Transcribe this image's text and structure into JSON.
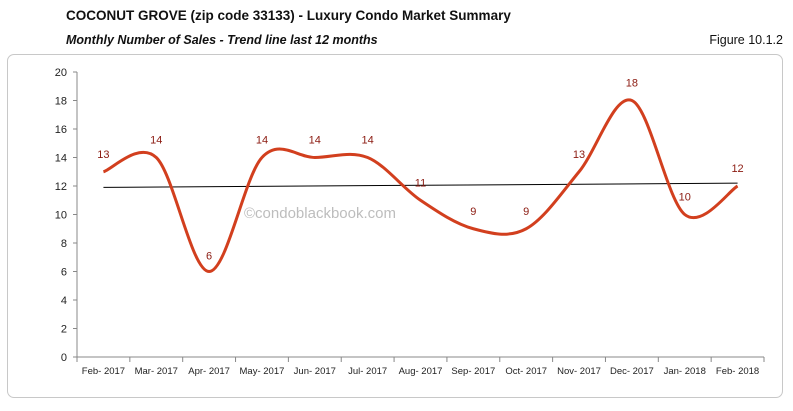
{
  "header": {
    "title": "COCONUT GROVE (zip code 33133) - Luxury Condo Market Summary",
    "subtitle": "Monthly Number of Sales - Trend line last 12 months",
    "figure_label": "Figure 10.1.2"
  },
  "watermark": "©condoblackbook.com",
  "colors": {
    "series": "#d23f1e",
    "trend": "#000000",
    "label": "#8b1a10"
  },
  "chart_data": {
    "type": "line",
    "smooth": true,
    "categories": [
      "Feb- 2017",
      "Mar- 2017",
      "Apr- 2017",
      "May- 2017",
      "Jun- 2017",
      "Jul- 2017",
      "Aug- 2017",
      "Sep- 2017",
      "Oct- 2017",
      "Nov- 2017",
      "Dec- 2017",
      "Jan- 2018",
      "Feb- 2018"
    ],
    "series": [
      {
        "values": [
          13,
          14,
          6,
          14,
          14,
          14,
          11,
          9,
          9,
          13,
          18,
          10,
          12
        ]
      }
    ],
    "trendline": {
      "start": 11.9,
      "end": 12.2
    },
    "ylim": [
      0,
      20
    ],
    "yticks": [
      0,
      2,
      4,
      6,
      8,
      10,
      12,
      14,
      16,
      18,
      20
    ],
    "data_labels": true,
    "grid": false,
    "legend": "none"
  }
}
